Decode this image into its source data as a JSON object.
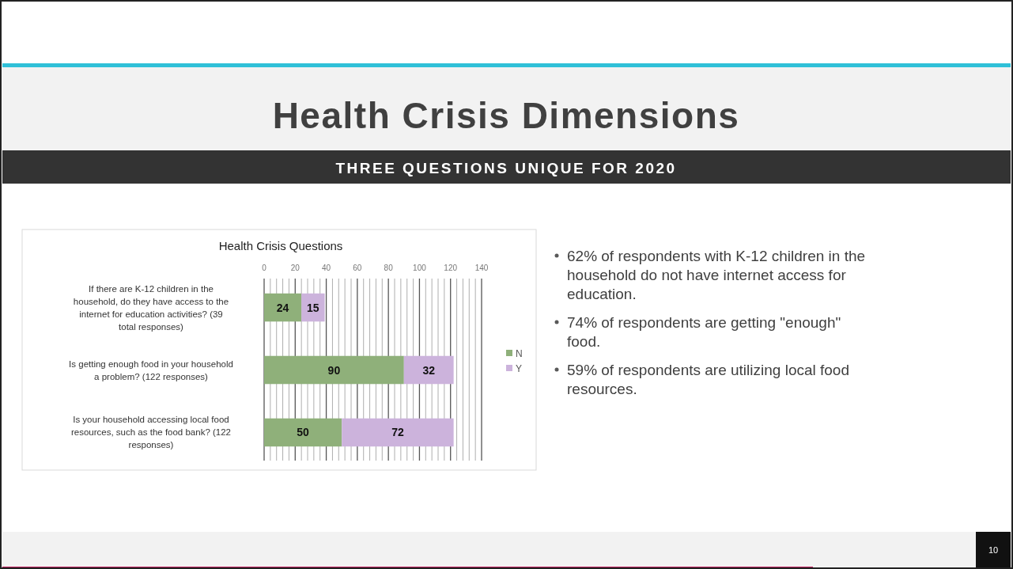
{
  "chart_data": {
    "type": "bar",
    "orientation": "horizontal",
    "stacked": true,
    "title": "Health Crisis Questions",
    "subtitle": "Health Crisis Dimensions",
    "categories": [
      "If there are K-12 children in the household, do they have access to the internet for education activities? (39 total responses)",
      "Is getting enough food in your household a problem? (122 responses)",
      "Is your household accessing local food resources, such as the food bank? (122 responses)"
    ],
    "series": [
      {
        "name": "N",
        "color": "#8fb07a",
        "values": [
          24,
          90,
          50
        ]
      },
      {
        "name": "Y",
        "color": "#ccb3dc",
        "values": [
          15,
          32,
          72
        ]
      }
    ],
    "xlim": [
      0,
      140
    ],
    "xticks": [
      0,
      {
        "value": 4,
        "label": null
      },
      {
        "value": 8,
        "label": null
      },
      {
        "value": 12,
        "label": null
      },
      {
        "value": 16,
        "label": null
      },
      20,
      {
        "value": 24,
        "label": null
      },
      {
        "value": 28,
        "label": null
      },
      {
        "value": 32,
        "label": null
      },
      {
        "value": 36,
        "label": null
      },
      40,
      {
        "value": 44,
        "label": null
      },
      {
        "value": 48,
        "label": null
      },
      {
        "value": 52,
        "label": null
      },
      {
        "value": 56,
        "label": null
      },
      60,
      {
        "value": 64,
        "label": null
      },
      {
        "value": 68,
        "label": null
      },
      {
        "value": 72,
        "label": null
      },
      {
        "value": 76,
        "label": null
      },
      80,
      {
        "value": 84,
        "label": null
      },
      {
        "value": 88,
        "label": null
      },
      {
        "value": 92,
        "label": null
      },
      {
        "value": 96,
        "label": null
      },
      100,
      {
        "value": 104,
        "label": null
      },
      {
        "value": 108,
        "label": null
      },
      {
        "value": 112,
        "label": null
      },
      {
        "value": 116,
        "label": null
      },
      120,
      {
        "value": 124,
        "label": null
      },
      {
        "value": 128,
        "label": null
      },
      {
        "value": 132,
        "label": null
      },
      {
        "value": 136,
        "label": null
      },
      140
    ],
    "grid": "x",
    "legend": "right",
    "data_labels": true,
    "annotations": [
      "THREE QUESTIONS UNIQUE FOR 2020",
      "62% of respondents with K-12 children in the household do not have internet access for education.",
      "74% of respondents are getting \"enough\" food.",
      "59% of respondents are utilizing local food resources.",
      "10"
    ]
  }
}
